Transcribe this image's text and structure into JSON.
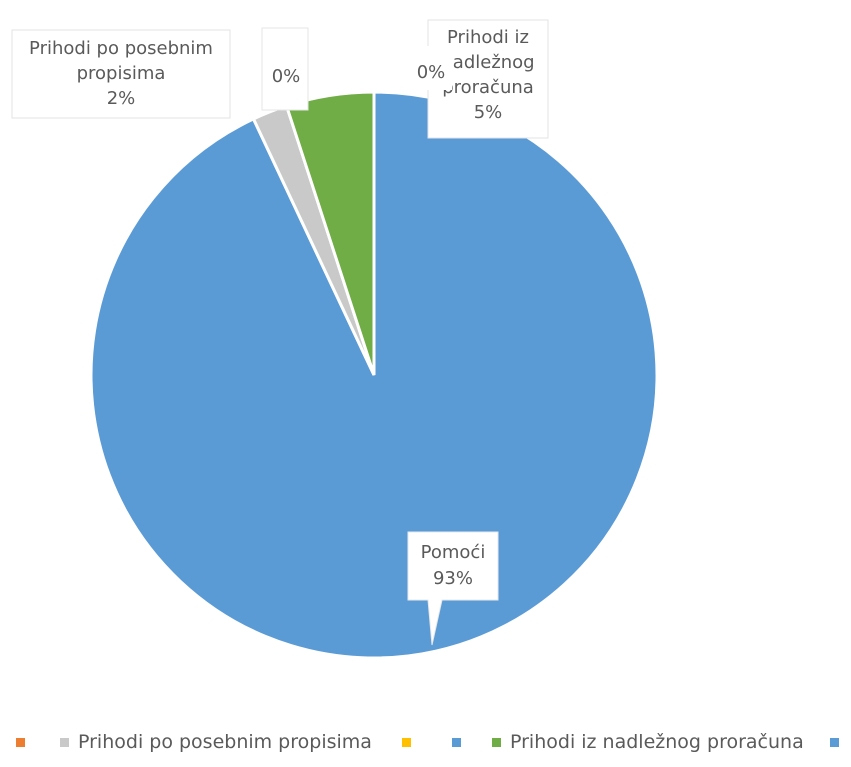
{
  "chart_data": {
    "type": "pie",
    "slices": [
      {
        "name": "Pomoći",
        "value": 93,
        "label_line1": "Pomoći",
        "label_line2": "93%",
        "color": "#5b9bd5"
      },
      {
        "name": "",
        "value": 0,
        "label_line1": "0%",
        "label_line2": "",
        "color": "#ed7d31"
      },
      {
        "name": "Prihodi po posebnim propisima",
        "value": 2,
        "label_line1": "Prihodi po posebnim",
        "label_line2": "propisima",
        "label_line3": "2%",
        "color": "#c9c9c9"
      },
      {
        "name": "",
        "value": 0,
        "label_line1": "0%",
        "label_line2": "",
        "color": "#ffc000"
      },
      {
        "name": "Prihodi iz nadležnog proračuna",
        "value": 5,
        "label_line1": "Prihodi iz",
        "label_line2": "nadležnog",
        "label_line3": "proračuna",
        "label_line4": "5%",
        "color": "#70ad47"
      }
    ],
    "legend": {
      "position": "bottom",
      "entries": [
        {
          "name": "",
          "color": "#ed7d31"
        },
        {
          "name": "Prihodi po posebnim propisima",
          "color": "#c9c9c9"
        },
        {
          "name": "",
          "color": "#ffc000"
        },
        {
          "name": "",
          "color": "#5b9bd5"
        },
        {
          "name": "Prihodi iz nadležnog proračuna",
          "color": "#70ad47"
        },
        {
          "name": "",
          "color": "#5b9bd5"
        }
      ]
    }
  }
}
